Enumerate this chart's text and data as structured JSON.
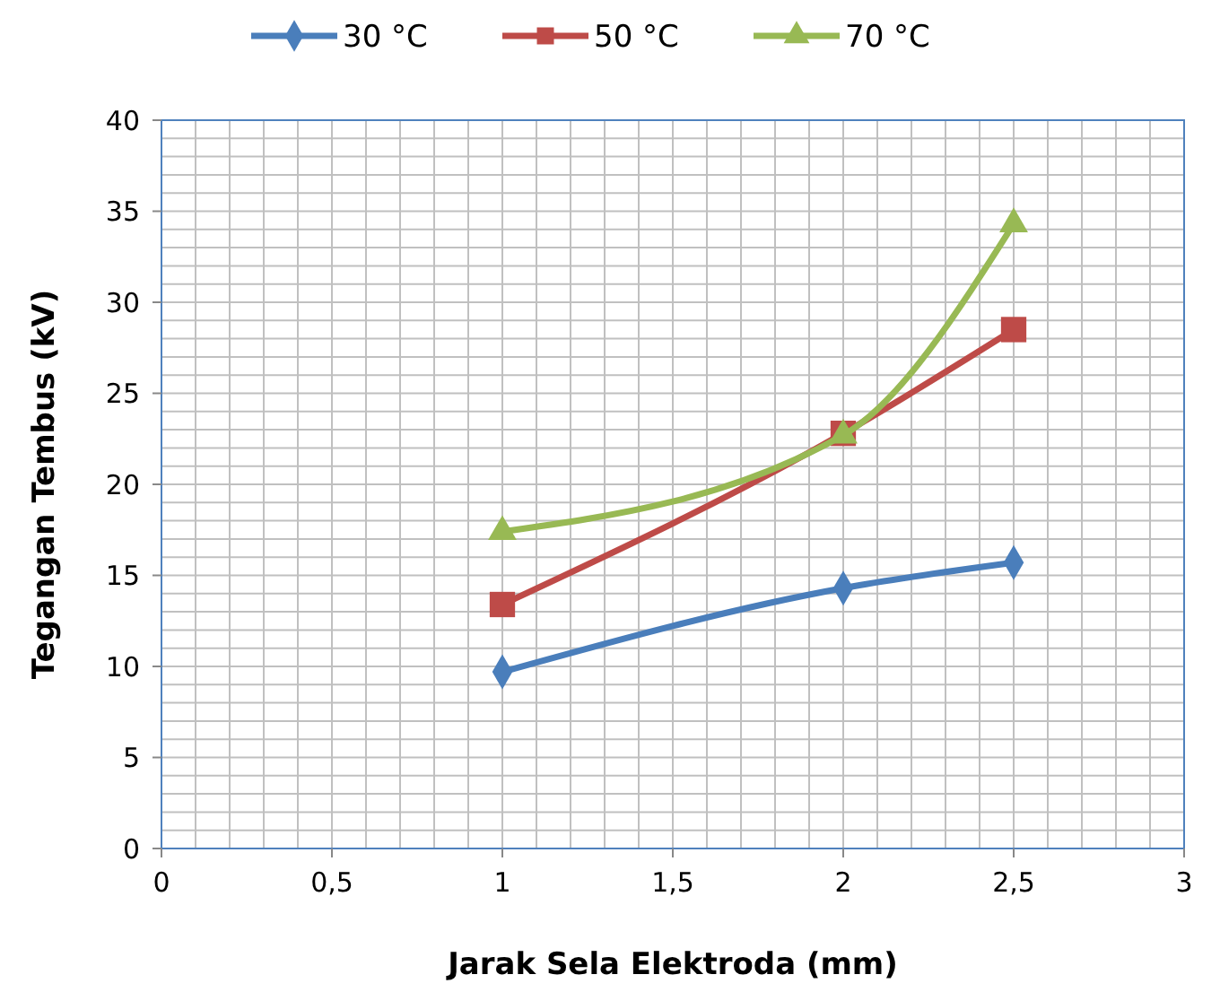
{
  "chart_data": {
    "type": "line",
    "xlabel": "Jarak Sela Elektroda (mm)",
    "ylabel": "Tegangan Tembus (kV)",
    "x": [
      1,
      2,
      2.5
    ],
    "series": [
      {
        "name": "30 °C",
        "color": "#4a7ebb",
        "values": [
          9.7,
          14.3,
          15.7
        ],
        "marker": "diamond"
      },
      {
        "name": "50 °C",
        "color": "#be4b48",
        "values": [
          13.4,
          22.8,
          28.5
        ],
        "marker": "square"
      },
      {
        "name": "70 °C",
        "color": "#98b954",
        "values": [
          17.4,
          22.7,
          34.3
        ],
        "marker": "triangle"
      }
    ],
    "xlim": [
      0,
      3
    ],
    "xticks": [
      0,
      {
        "value": 0.5,
        "label": "0,5"
      },
      1,
      {
        "value": 1.5,
        "label": "1,5"
      },
      2,
      {
        "value": 2.5,
        "label": "2,5"
      },
      3
    ],
    "ylim": [
      0,
      40
    ],
    "yticks": [
      0,
      5,
      10,
      15,
      20,
      25,
      30,
      35,
      40
    ],
    "grid": true,
    "legend": "top"
  }
}
